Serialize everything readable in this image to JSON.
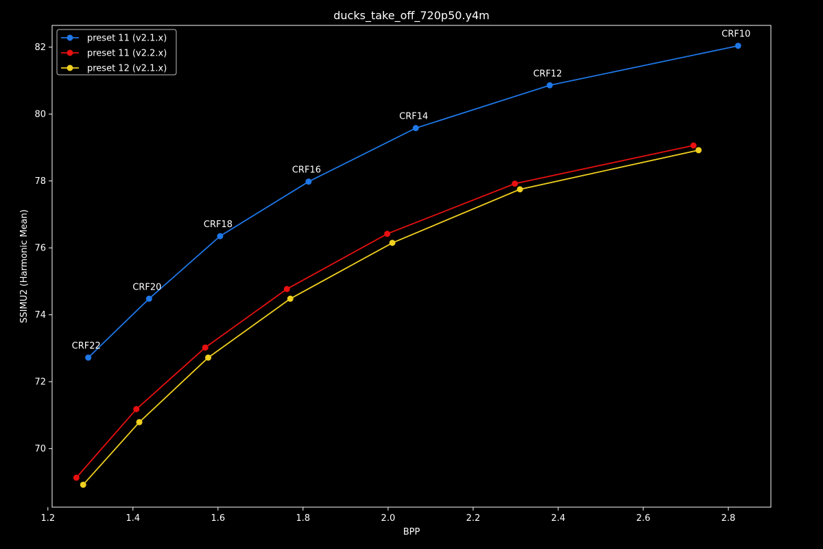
{
  "chart_data": {
    "type": "line",
    "title": "ducks_take_off_720p50.y4m",
    "xlabel": "BPP",
    "ylabel": "SSIMU2 (Harmonic Mean)",
    "xlim": [
      1.21,
      2.9
    ],
    "ylim": [
      68.25,
      82.65
    ],
    "xticks": [
      1.2,
      1.4,
      1.6,
      1.8,
      2.0,
      2.2,
      2.4,
      2.6,
      2.8
    ],
    "yticks": [
      70,
      72,
      74,
      76,
      78,
      80,
      82
    ],
    "xtick_labels": [
      "1.2",
      "1.4",
      "1.6",
      "1.8",
      "2.0",
      "2.2",
      "2.4",
      "2.6",
      "2.8"
    ],
    "ytick_labels": [
      "70",
      "72",
      "74",
      "76",
      "78",
      "80",
      "82"
    ],
    "grid": false,
    "legend_position": "top-left",
    "series": [
      {
        "name": "preset 11 (v2.1.x)",
        "color": "#1f77e8",
        "points": [
          {
            "x": 1.295,
            "y": 72.72,
            "label": "CRF22"
          },
          {
            "x": 1.438,
            "y": 74.48,
            "label": "CRF20"
          },
          {
            "x": 1.605,
            "y": 76.35,
            "label": "CRF18"
          },
          {
            "x": 1.813,
            "y": 77.98,
            "label": "CRF16"
          },
          {
            "x": 2.065,
            "y": 79.58,
            "label": "CRF14"
          },
          {
            "x": 2.38,
            "y": 80.86,
            "label": "CRF12"
          },
          {
            "x": 2.823,
            "y": 82.04,
            "label": "CRF10"
          }
        ]
      },
      {
        "name": "preset 11 (v2.2.x)",
        "color": "#e81010",
        "points": [
          {
            "x": 1.267,
            "y": 69.13
          },
          {
            "x": 1.408,
            "y": 71.18
          },
          {
            "x": 1.57,
            "y": 73.02
          },
          {
            "x": 1.762,
            "y": 74.77
          },
          {
            "x": 1.998,
            "y": 76.42
          },
          {
            "x": 2.298,
            "y": 77.92
          },
          {
            "x": 2.718,
            "y": 79.06
          }
        ]
      },
      {
        "name": "preset 12 (v2.1.x)",
        "color": "#f0d020",
        "points": [
          {
            "x": 1.283,
            "y": 68.92
          },
          {
            "x": 1.415,
            "y": 70.79
          },
          {
            "x": 1.577,
            "y": 72.72
          },
          {
            "x": 1.77,
            "y": 74.48
          },
          {
            "x": 2.01,
            "y": 76.15
          },
          {
            "x": 2.31,
            "y": 77.75
          },
          {
            "x": 2.73,
            "y": 78.92
          }
        ]
      }
    ]
  }
}
